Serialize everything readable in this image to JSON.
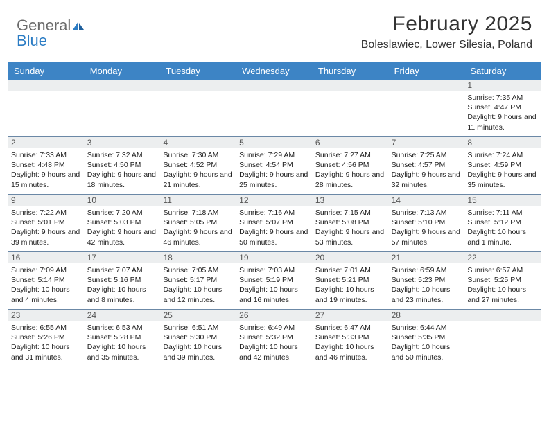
{
  "logo": {
    "general": "General",
    "blue": "Blue"
  },
  "title": "February 2025",
  "location": "Boleslawiec, Lower Silesia, Poland",
  "header_bg": "#3d84c5",
  "daynum_bg": "#eceeef",
  "week_border": "#6b88a6",
  "dayNames": [
    "Sunday",
    "Monday",
    "Tuesday",
    "Wednesday",
    "Thursday",
    "Friday",
    "Saturday"
  ],
  "weeks": [
    [
      null,
      null,
      null,
      null,
      null,
      null,
      {
        "n": "1",
        "sr": "7:35 AM",
        "ss": "4:47 PM",
        "dl": "9 hours and 11 minutes."
      }
    ],
    [
      {
        "n": "2",
        "sr": "7:33 AM",
        "ss": "4:48 PM",
        "dl": "9 hours and 15 minutes."
      },
      {
        "n": "3",
        "sr": "7:32 AM",
        "ss": "4:50 PM",
        "dl": "9 hours and 18 minutes."
      },
      {
        "n": "4",
        "sr": "7:30 AM",
        "ss": "4:52 PM",
        "dl": "9 hours and 21 minutes."
      },
      {
        "n": "5",
        "sr": "7:29 AM",
        "ss": "4:54 PM",
        "dl": "9 hours and 25 minutes."
      },
      {
        "n": "6",
        "sr": "7:27 AM",
        "ss": "4:56 PM",
        "dl": "9 hours and 28 minutes."
      },
      {
        "n": "7",
        "sr": "7:25 AM",
        "ss": "4:57 PM",
        "dl": "9 hours and 32 minutes."
      },
      {
        "n": "8",
        "sr": "7:24 AM",
        "ss": "4:59 PM",
        "dl": "9 hours and 35 minutes."
      }
    ],
    [
      {
        "n": "9",
        "sr": "7:22 AM",
        "ss": "5:01 PM",
        "dl": "9 hours and 39 minutes."
      },
      {
        "n": "10",
        "sr": "7:20 AM",
        "ss": "5:03 PM",
        "dl": "9 hours and 42 minutes."
      },
      {
        "n": "11",
        "sr": "7:18 AM",
        "ss": "5:05 PM",
        "dl": "9 hours and 46 minutes."
      },
      {
        "n": "12",
        "sr": "7:16 AM",
        "ss": "5:07 PM",
        "dl": "9 hours and 50 minutes."
      },
      {
        "n": "13",
        "sr": "7:15 AM",
        "ss": "5:08 PM",
        "dl": "9 hours and 53 minutes."
      },
      {
        "n": "14",
        "sr": "7:13 AM",
        "ss": "5:10 PM",
        "dl": "9 hours and 57 minutes."
      },
      {
        "n": "15",
        "sr": "7:11 AM",
        "ss": "5:12 PM",
        "dl": "10 hours and 1 minute."
      }
    ],
    [
      {
        "n": "16",
        "sr": "7:09 AM",
        "ss": "5:14 PM",
        "dl": "10 hours and 4 minutes."
      },
      {
        "n": "17",
        "sr": "7:07 AM",
        "ss": "5:16 PM",
        "dl": "10 hours and 8 minutes."
      },
      {
        "n": "18",
        "sr": "7:05 AM",
        "ss": "5:17 PM",
        "dl": "10 hours and 12 minutes."
      },
      {
        "n": "19",
        "sr": "7:03 AM",
        "ss": "5:19 PM",
        "dl": "10 hours and 16 minutes."
      },
      {
        "n": "20",
        "sr": "7:01 AM",
        "ss": "5:21 PM",
        "dl": "10 hours and 19 minutes."
      },
      {
        "n": "21",
        "sr": "6:59 AM",
        "ss": "5:23 PM",
        "dl": "10 hours and 23 minutes."
      },
      {
        "n": "22",
        "sr": "6:57 AM",
        "ss": "5:25 PM",
        "dl": "10 hours and 27 minutes."
      }
    ],
    [
      {
        "n": "23",
        "sr": "6:55 AM",
        "ss": "5:26 PM",
        "dl": "10 hours and 31 minutes."
      },
      {
        "n": "24",
        "sr": "6:53 AM",
        "ss": "5:28 PM",
        "dl": "10 hours and 35 minutes."
      },
      {
        "n": "25",
        "sr": "6:51 AM",
        "ss": "5:30 PM",
        "dl": "10 hours and 39 minutes."
      },
      {
        "n": "26",
        "sr": "6:49 AM",
        "ss": "5:32 PM",
        "dl": "10 hours and 42 minutes."
      },
      {
        "n": "27",
        "sr": "6:47 AM",
        "ss": "5:33 PM",
        "dl": "10 hours and 46 minutes."
      },
      {
        "n": "28",
        "sr": "6:44 AM",
        "ss": "5:35 PM",
        "dl": "10 hours and 50 minutes."
      },
      null
    ]
  ],
  "labels": {
    "sunrise": "Sunrise:",
    "sunset": "Sunset:",
    "daylight": "Daylight:"
  }
}
